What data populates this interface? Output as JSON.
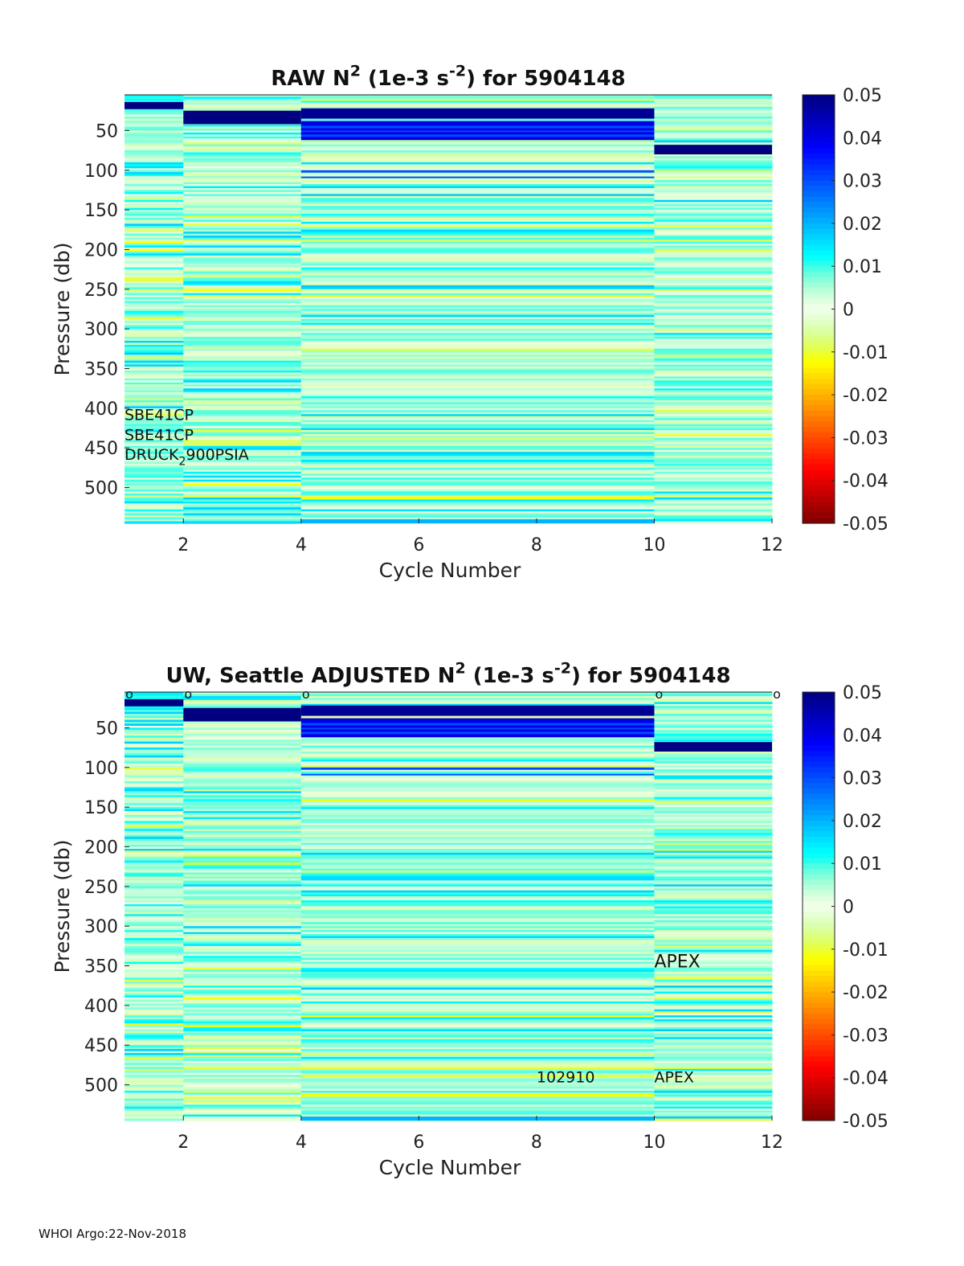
{
  "footer": "WHOI Argo:22-Nov-2018",
  "chart_data": [
    {
      "type": "heatmap",
      "panel": "raw",
      "title_parts": [
        "RAW N",
        "2",
        " (1e-3 s",
        "-2",
        ") for 5904148"
      ],
      "xlabel": "Cycle Number",
      "ylabel": "Pressure (db)",
      "x_ticks": [
        2,
        4,
        6,
        8,
        10,
        12
      ],
      "y_ticks": [
        50,
        100,
        150,
        200,
        250,
        300,
        350,
        400,
        450,
        500
      ],
      "xlim": [
        1,
        12
      ],
      "ylim": [
        5,
        545
      ],
      "y_reversed": true,
      "columns": [
        {
          "x_start": 1,
          "x_end": 2,
          "cycles": [
            1
          ]
        },
        {
          "x_start": 2,
          "x_end": 4,
          "cycles": [
            2,
            3
          ]
        },
        {
          "x_start": 4,
          "x_end": 10,
          "cycles": [
            4,
            5,
            6,
            7,
            8,
            9
          ]
        },
        {
          "x_start": 10,
          "x_end": 12,
          "cycles": [
            10,
            11
          ]
        }
      ],
      "strong_layers": [
        {
          "column": 0,
          "p_top": 14,
          "p_bottom": 23,
          "value": 0.05
        },
        {
          "column": 1,
          "p_top": 25,
          "p_bottom": 42,
          "value": 0.05
        },
        {
          "column": 2,
          "p_top": 22,
          "p_bottom": 35,
          "value": 0.048
        },
        {
          "column": 2,
          "p_top": 38,
          "p_bottom": 62,
          "value": 0.04
        },
        {
          "column": 3,
          "p_top": 68,
          "p_bottom": 80,
          "value": 0.05
        },
        {
          "column": 2,
          "p_top": 511,
          "p_bottom": 515,
          "value": -0.012
        },
        {
          "column": 2,
          "p_top": 540,
          "p_bottom": 545,
          "value": 0.02
        }
      ],
      "colorbar": {
        "range": [
          -0.05,
          0.05
        ],
        "tick_labels": [
          "0.05",
          "0.04",
          "0.03",
          "0.02",
          "0.01",
          "0",
          "-0.01",
          "-0.02",
          "-0.03",
          "-0.04",
          "-0.05"
        ]
      },
      "annotations": [
        {
          "x": 1,
          "p": 415,
          "parts": [
            "SBE41CP"
          ]
        },
        {
          "x": 1,
          "p": 440,
          "parts": [
            "SBE41CP"
          ]
        },
        {
          "x": 1,
          "p": 465,
          "parts": [
            "DRUCK",
            "2",
            "900PSIA"
          ]
        }
      ],
      "markers": []
    },
    {
      "type": "heatmap",
      "panel": "adjusted",
      "title_parts": [
        "UW, Seattle  ADJUSTED N",
        "2",
        " (1e-3 s",
        "-2",
        ") for 5904148"
      ],
      "xlabel": "Cycle Number",
      "ylabel": "Pressure (db)",
      "x_ticks": [
        2,
        4,
        6,
        8,
        10,
        12
      ],
      "y_ticks": [
        50,
        100,
        150,
        200,
        250,
        300,
        350,
        400,
        450,
        500
      ],
      "xlim": [
        1,
        12
      ],
      "ylim": [
        5,
        545
      ],
      "y_reversed": true,
      "columns": [
        {
          "x_start": 1,
          "x_end": 2,
          "cycles": [
            1
          ]
        },
        {
          "x_start": 2,
          "x_end": 4,
          "cycles": [
            2,
            3
          ]
        },
        {
          "x_start": 4,
          "x_end": 10,
          "cycles": [
            4,
            5,
            6,
            7,
            8,
            9
          ]
        },
        {
          "x_start": 10,
          "x_end": 12,
          "cycles": [
            10,
            11
          ]
        }
      ],
      "strong_layers": [
        {
          "column": 0,
          "p_top": 14,
          "p_bottom": 23,
          "value": 0.05
        },
        {
          "column": 1,
          "p_top": 25,
          "p_bottom": 42,
          "value": 0.05
        },
        {
          "column": 2,
          "p_top": 22,
          "p_bottom": 35,
          "value": 0.048
        },
        {
          "column": 2,
          "p_top": 38,
          "p_bottom": 62,
          "value": 0.04
        },
        {
          "column": 3,
          "p_top": 68,
          "p_bottom": 80,
          "value": 0.05
        },
        {
          "column": 2,
          "p_top": 511,
          "p_bottom": 515,
          "value": -0.012
        },
        {
          "column": 2,
          "p_top": 540,
          "p_bottom": 545,
          "value": 0.02
        }
      ],
      "colorbar": {
        "range": [
          -0.05,
          0.05
        ],
        "tick_labels": [
          "0.05",
          "0.04",
          "0.03",
          "0.02",
          "0.01",
          "0",
          "-0.01",
          "-0.02",
          "-0.03",
          "-0.04",
          "-0.05"
        ]
      },
      "annotations": [
        {
          "x": 10,
          "p": 352,
          "parts": [
            "APEX"
          ],
          "size": "large"
        },
        {
          "x": 8,
          "p": 497,
          "parts": [
            "102910"
          ]
        },
        {
          "x": 10,
          "p": 497,
          "parts": [
            "APEX"
          ]
        }
      ],
      "markers": [
        {
          "x": 1,
          "label": "o"
        },
        {
          "x": 2,
          "label": "o"
        },
        {
          "x": 4,
          "label": "o"
        },
        {
          "x": 10,
          "label": "o"
        },
        {
          "x": 12,
          "label": "o"
        }
      ]
    }
  ]
}
